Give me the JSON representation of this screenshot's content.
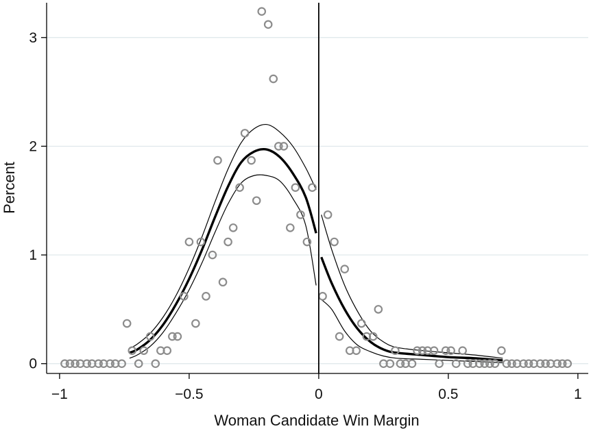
{
  "chart_data": {
    "type": "scatter",
    "xlabel": "Woman Candidate Win Margin",
    "ylabel": "Percent",
    "xlim": [
      -1.05,
      1.04
    ],
    "ylim": [
      -0.09,
      3.32
    ],
    "xticks": [
      -1,
      -0.5,
      0,
      0.5,
      1
    ],
    "xtick_labels": [
      "−1",
      "−0.5",
      "0",
      "0.5",
      "1"
    ],
    "yticks": [
      0,
      1,
      2,
      3
    ],
    "ytick_labels": [
      "0",
      "1",
      "2",
      "3"
    ],
    "grid": "horizontal",
    "cutoff_x": 0,
    "colors": {
      "points": "#8c8c8c",
      "fit": "#000000",
      "ci": "#000000",
      "grid": "#dde6ea"
    },
    "scatter_points": [
      [
        -0.98,
        0
      ],
      [
        -0.96,
        0
      ],
      [
        -0.94,
        0
      ],
      [
        -0.92,
        0
      ],
      [
        -0.895,
        0
      ],
      [
        -0.875,
        0
      ],
      [
        -0.85,
        0
      ],
      [
        -0.83,
        0
      ],
      [
        -0.805,
        0
      ],
      [
        -0.785,
        0
      ],
      [
        -0.76,
        0
      ],
      [
        -0.74,
        0.37
      ],
      [
        -0.72,
        0.12
      ],
      [
        -0.695,
        0
      ],
      [
        -0.675,
        0.12
      ],
      [
        -0.65,
        0.25
      ],
      [
        -0.63,
        0
      ],
      [
        -0.61,
        0.12
      ],
      [
        -0.585,
        0.12
      ],
      [
        -0.565,
        0.25
      ],
      [
        -0.545,
        0.25
      ],
      [
        -0.52,
        0.62
      ],
      [
        -0.5,
        1.12
      ],
      [
        -0.475,
        0.37
      ],
      [
        -0.455,
        1.12
      ],
      [
        -0.435,
        0.62
      ],
      [
        -0.41,
        1.0
      ],
      [
        -0.39,
        1.87
      ],
      [
        -0.37,
        0.75
      ],
      [
        -0.35,
        1.12
      ],
      [
        -0.33,
        1.25
      ],
      [
        -0.305,
        1.62
      ],
      [
        -0.285,
        2.12
      ],
      [
        -0.26,
        1.87
      ],
      [
        -0.24,
        1.5
      ],
      [
        -0.22,
        3.24
      ],
      [
        -0.195,
        3.12
      ],
      [
        -0.175,
        2.62
      ],
      [
        -0.155,
        2.0
      ],
      [
        -0.135,
        2.0
      ],
      [
        -0.11,
        1.25
      ],
      [
        -0.09,
        1.62
      ],
      [
        -0.07,
        1.37
      ],
      [
        -0.045,
        1.12
      ],
      [
        -0.025,
        1.62
      ],
      [
        0.015,
        0.62
      ],
      [
        0.035,
        1.37
      ],
      [
        0.06,
        1.12
      ],
      [
        0.08,
        0.25
      ],
      [
        0.1,
        0.87
      ],
      [
        0.12,
        0.12
      ],
      [
        0.145,
        0.12
      ],
      [
        0.165,
        0.37
      ],
      [
        0.185,
        0.25
      ],
      [
        0.21,
        0.25
      ],
      [
        0.23,
        0.5
      ],
      [
        0.25,
        0
      ],
      [
        0.275,
        0
      ],
      [
        0.295,
        0.12
      ],
      [
        0.315,
        0
      ],
      [
        0.335,
        0
      ],
      [
        0.36,
        0
      ],
      [
        0.38,
        0.12
      ],
      [
        0.4,
        0.12
      ],
      [
        0.42,
        0.12
      ],
      [
        0.445,
        0.12
      ],
      [
        0.465,
        0
      ],
      [
        0.49,
        0.12
      ],
      [
        0.51,
        0.12
      ],
      [
        0.53,
        0
      ],
      [
        0.555,
        0.12
      ],
      [
        0.575,
        0
      ],
      [
        0.595,
        0
      ],
      [
        0.62,
        0
      ],
      [
        0.64,
        0
      ],
      [
        0.66,
        0
      ],
      [
        0.68,
        0
      ],
      [
        0.705,
        0.12
      ],
      [
        0.725,
        0
      ],
      [
        0.745,
        0
      ],
      [
        0.765,
        0
      ],
      [
        0.79,
        0
      ],
      [
        0.81,
        0
      ],
      [
        0.83,
        0
      ],
      [
        0.855,
        0
      ],
      [
        0.875,
        0
      ],
      [
        0.895,
        0
      ],
      [
        0.92,
        0
      ],
      [
        0.94,
        0
      ],
      [
        0.96,
        0
      ]
    ],
    "fit_left": [
      [
        -0.73,
        0.1
      ],
      [
        -0.7,
        0.13
      ],
      [
        -0.65,
        0.22
      ],
      [
        -0.6,
        0.36
      ],
      [
        -0.55,
        0.55
      ],
      [
        -0.5,
        0.78
      ],
      [
        -0.45,
        1.05
      ],
      [
        -0.4,
        1.35
      ],
      [
        -0.35,
        1.63
      ],
      [
        -0.3,
        1.85
      ],
      [
        -0.25,
        1.95
      ],
      [
        -0.2,
        1.97
      ],
      [
        -0.15,
        1.9
      ],
      [
        -0.1,
        1.75
      ],
      [
        -0.05,
        1.53
      ],
      [
        -0.01,
        1.2
      ]
    ],
    "ci_left_upper": [
      [
        -0.73,
        0.14
      ],
      [
        -0.7,
        0.18
      ],
      [
        -0.65,
        0.28
      ],
      [
        -0.6,
        0.43
      ],
      [
        -0.55,
        0.63
      ],
      [
        -0.5,
        0.88
      ],
      [
        -0.45,
        1.17
      ],
      [
        -0.4,
        1.49
      ],
      [
        -0.35,
        1.79
      ],
      [
        -0.3,
        2.03
      ],
      [
        -0.25,
        2.16
      ],
      [
        -0.2,
        2.2
      ],
      [
        -0.15,
        2.13
      ],
      [
        -0.1,
        2.0
      ],
      [
        -0.05,
        1.8
      ],
      [
        -0.01,
        1.6
      ]
    ],
    "ci_left_lower": [
      [
        -0.73,
        0.05
      ],
      [
        -0.7,
        0.08
      ],
      [
        -0.65,
        0.16
      ],
      [
        -0.6,
        0.29
      ],
      [
        -0.55,
        0.47
      ],
      [
        -0.5,
        0.68
      ],
      [
        -0.45,
        0.93
      ],
      [
        -0.4,
        1.21
      ],
      [
        -0.35,
        1.47
      ],
      [
        -0.3,
        1.66
      ],
      [
        -0.25,
        1.73
      ],
      [
        -0.2,
        1.73
      ],
      [
        -0.15,
        1.68
      ],
      [
        -0.1,
        1.52
      ],
      [
        -0.05,
        1.27
      ],
      [
        -0.01,
        0.72
      ]
    ],
    "fit_right": [
      [
        0.01,
        0.98
      ],
      [
        0.05,
        0.74
      ],
      [
        0.1,
        0.5
      ],
      [
        0.15,
        0.32
      ],
      [
        0.2,
        0.2
      ],
      [
        0.25,
        0.13
      ],
      [
        0.3,
        0.1
      ],
      [
        0.4,
        0.08
      ],
      [
        0.5,
        0.06
      ],
      [
        0.6,
        0.05
      ],
      [
        0.71,
        0.03
      ]
    ],
    "ci_right_upper": [
      [
        0.01,
        1.37
      ],
      [
        0.05,
        1.05
      ],
      [
        0.1,
        0.72
      ],
      [
        0.15,
        0.48
      ],
      [
        0.2,
        0.3
      ],
      [
        0.25,
        0.2
      ],
      [
        0.3,
        0.15
      ],
      [
        0.4,
        0.12
      ],
      [
        0.5,
        0.1
      ],
      [
        0.6,
        0.08
      ],
      [
        0.71,
        0.05
      ]
    ],
    "ci_right_lower": [
      [
        0.01,
        0.59
      ],
      [
        0.05,
        0.5
      ],
      [
        0.1,
        0.3
      ],
      [
        0.15,
        0.17
      ],
      [
        0.2,
        0.11
      ],
      [
        0.25,
        0.07
      ],
      [
        0.3,
        0.05
      ],
      [
        0.4,
        0.04
      ],
      [
        0.5,
        0.03
      ],
      [
        0.6,
        0.02
      ],
      [
        0.71,
        0.01
      ]
    ]
  }
}
